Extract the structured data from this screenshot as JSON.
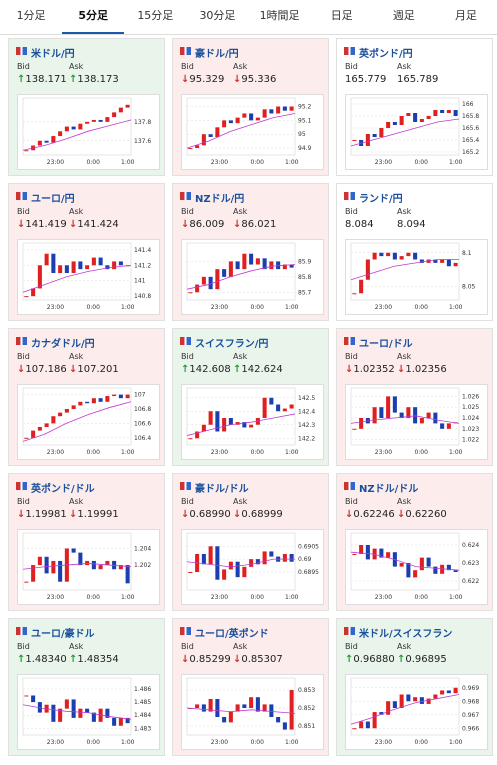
{
  "tabs": [
    "1分足",
    "5分足",
    "15分足",
    "30分足",
    "1時間足",
    "日足",
    "週足",
    "月足"
  ],
  "active_tab": 1,
  "time_labels": [
    "23:00",
    "0:00",
    "1:00"
  ],
  "bid_label": "Bid",
  "ask_label": "Ask",
  "cards": [
    {
      "pair": "米ドル/円",
      "trend": "up",
      "arrow": "↑",
      "bid": "138.171",
      "ask": "138.173",
      "ylim": [
        137.45,
        138.02
      ],
      "yticks": [
        137.8,
        137.6
      ],
      "closes": [
        137.5,
        137.55,
        137.6,
        137.58,
        137.65,
        137.7,
        137.75,
        137.72,
        137.78,
        137.8,
        137.82,
        137.8,
        137.85,
        137.9,
        137.95,
        137.98
      ],
      "ma": [
        137.5,
        137.55,
        137.62,
        137.7,
        137.76,
        137.82
      ]
    },
    {
      "pair": "豪ドル/円",
      "trend": "down",
      "arrow": "↓",
      "bid": "95.329",
      "ask": "95.336",
      "ylim": [
        94.85,
        95.24
      ],
      "yticks": [
        95.2,
        95.1,
        95,
        94.9
      ],
      "closes": [
        94.9,
        94.92,
        95.0,
        94.98,
        95.05,
        95.1,
        95.08,
        95.12,
        95.15,
        95.1,
        95.12,
        95.18,
        95.15,
        95.2,
        95.17,
        95.2
      ],
      "ma": [
        94.9,
        94.95,
        95.02,
        95.07,
        95.12,
        95.15
      ]
    },
    {
      "pair": "英ポンド/円",
      "trend": "flat",
      "arrow": null,
      "bid": "165.779",
      "ask": "165.789",
      "ylim": [
        165.15,
        166.05
      ],
      "yticks": [
        166,
        165.8,
        165.6,
        165.4,
        165.2
      ],
      "closes": [
        165.4,
        165.3,
        165.5,
        165.45,
        165.6,
        165.7,
        165.65,
        165.8,
        165.85,
        165.7,
        165.75,
        165.8,
        165.9,
        165.85,
        165.9,
        165.8
      ],
      "ma": [
        165.3,
        165.4,
        165.5,
        165.6,
        165.7,
        165.75
      ]
    },
    {
      "pair": "ユーロ/円",
      "trend": "down",
      "arrow": "↓",
      "bid": "141.419",
      "ask": "141.424",
      "ylim": [
        140.75,
        141.45
      ],
      "yticks": [
        141.4,
        141.2,
        141,
        140.8
      ],
      "closes": [
        140.8,
        140.9,
        141.2,
        141.35,
        141.1,
        141.2,
        141.1,
        141.25,
        141.15,
        141.2,
        141.3,
        141.2,
        141.15,
        141.25,
        141.2,
        141.2
      ],
      "ma": [
        140.85,
        140.95,
        141.05,
        141.12,
        141.17,
        141.2
      ]
    },
    {
      "pair": "NZドル/円",
      "trend": "down",
      "arrow": "↓",
      "bid": "86.009",
      "ask": "86.021",
      "ylim": [
        85.65,
        86.0
      ],
      "yticks": [
        85.9,
        85.8,
        85.7
      ],
      "closes": [
        85.7,
        85.75,
        85.8,
        85.72,
        85.85,
        85.8,
        85.9,
        85.85,
        85.95,
        85.88,
        85.92,
        85.85,
        85.9,
        85.85,
        85.88,
        85.86
      ],
      "ma": [
        85.72,
        85.75,
        85.8,
        85.84,
        85.87,
        85.88
      ]
    },
    {
      "pair": "ランド/円",
      "trend": "flat",
      "arrow": null,
      "bid": "8.084",
      "ask": "8.094",
      "ylim": [
        8.03,
        8.11
      ],
      "yticks": [
        8.1,
        8.05
      ],
      "closes": [
        8.04,
        8.06,
        8.09,
        8.1,
        8.095,
        8.1,
        8.09,
        8.095,
        8.1,
        8.09,
        8.085,
        8.09,
        8.085,
        8.09,
        8.08,
        8.085
      ],
      "ma": [
        8.06,
        8.07,
        8.08,
        8.085,
        8.09,
        8.09
      ]
    },
    {
      "pair": "カナダドル/円",
      "trend": "down",
      "arrow": "↓",
      "bid": "107.186",
      "ask": "107.201",
      "ylim": [
        106.3,
        107.05
      ],
      "yticks": [
        107,
        106.8,
        106.6,
        106.4
      ],
      "closes": [
        106.4,
        106.5,
        106.55,
        106.6,
        106.7,
        106.75,
        106.8,
        106.85,
        106.9,
        106.88,
        106.95,
        106.9,
        106.98,
        107,
        106.95,
        107
      ],
      "ma": [
        106.35,
        106.45,
        106.6,
        106.72,
        106.82,
        106.9
      ]
    },
    {
      "pair": "スイスフラン/円",
      "trend": "up",
      "arrow": "↑",
      "bid": "142.608",
      "ask": "142.624",
      "ylim": [
        142.15,
        142.55
      ],
      "yticks": [
        142.5,
        142.4,
        142.3,
        142.2
      ],
      "closes": [
        142.2,
        142.25,
        142.3,
        142.4,
        142.25,
        142.35,
        142.3,
        142.32,
        142.28,
        142.3,
        142.35,
        142.5,
        142.45,
        142.4,
        142.42,
        142.45
      ],
      "ma": [
        142.22,
        142.26,
        142.3,
        142.32,
        142.35,
        142.38
      ]
    },
    {
      "pair": "ユーロ/ドル",
      "trend": "down",
      "arrow": "↓",
      "bid": "1.02352",
      "ask": "1.02356",
      "ylim": [
        1.0215,
        1.0265
      ],
      "yticks": [
        1.026,
        1.025,
        1.024,
        1.023,
        1.022
      ],
      "closes": [
        1.023,
        1.024,
        1.0235,
        1.025,
        1.024,
        1.026,
        1.0245,
        1.024,
        1.025,
        1.0235,
        1.024,
        1.0245,
        1.0235,
        1.023,
        1.0235,
        1.0236
      ],
      "ma": [
        1.0235,
        1.0238,
        1.024,
        1.0242,
        1.0238,
        1.0235
      ]
    },
    {
      "pair": "英ポンド/ドル",
      "trend": "down",
      "arrow": "↓",
      "bid": "1.19981",
      "ask": "1.19991",
      "ylim": [
        1.199,
        1.2055
      ],
      "yticks": [
        1.204,
        1.202
      ],
      "closes": [
        1.2,
        1.202,
        1.203,
        1.201,
        1.2025,
        1.2,
        1.204,
        1.2035,
        1.202,
        1.2025,
        1.2015,
        1.202,
        1.2025,
        1.2015,
        1.202,
        1.1998
      ],
      "ma": [
        1.2015,
        1.2018,
        1.202,
        1.2022,
        1.202,
        1.2018
      ]
    },
    {
      "pair": "豪ドル/ドル",
      "trend": "down",
      "arrow": "↓",
      "bid": "0.68990",
      "ask": "0.68999",
      "ylim": [
        0.6888,
        0.6909
      ],
      "yticks": [
        0.6905,
        0.69,
        0.6895
      ],
      "closes": [
        0.6895,
        0.6902,
        0.6898,
        0.6905,
        0.6892,
        0.6896,
        0.6899,
        0.6893,
        0.6897,
        0.69,
        0.6898,
        0.6903,
        0.6901,
        0.6899,
        0.6902,
        0.6899
      ],
      "ma": [
        0.6899,
        0.6898,
        0.6897,
        0.6898,
        0.69,
        0.69
      ]
    },
    {
      "pair": "NZドル/ドル",
      "trend": "down",
      "arrow": "↓",
      "bid": "0.62246",
      "ask": "0.62260",
      "ylim": [
        0.6215,
        0.6245
      ],
      "yticks": [
        0.624,
        0.623,
        0.622
      ],
      "closes": [
        0.6235,
        0.624,
        0.6232,
        0.6238,
        0.6233,
        0.6236,
        0.6228,
        0.623,
        0.6222,
        0.6226,
        0.6233,
        0.6228,
        0.6224,
        0.6229,
        0.6226,
        0.6225
      ],
      "ma": [
        0.6236,
        0.6235,
        0.6232,
        0.6228,
        0.6227,
        0.6226
      ]
    },
    {
      "pair": "ユーロ/豪ドル",
      "trend": "up",
      "arrow": "↑",
      "bid": "1.48340",
      "ask": "1.48354",
      "ylim": [
        1.4825,
        1.4866
      ],
      "yticks": [
        1.486,
        1.485,
        1.484,
        1.483
      ],
      "closes": [
        1.4855,
        1.485,
        1.4842,
        1.4848,
        1.4835,
        1.4845,
        1.4852,
        1.4838,
        1.4845,
        1.4842,
        1.4835,
        1.4845,
        1.4838,
        1.4832,
        1.4838,
        1.4834
      ],
      "ma": [
        1.4848,
        1.4845,
        1.4843,
        1.4842,
        1.4839,
        1.4837
      ]
    },
    {
      "pair": "ユーロ/英ポンド",
      "trend": "down",
      "arrow": "↓",
      "bid": "0.85299",
      "ask": "0.85307",
      "ylim": [
        0.8505,
        0.8535
      ],
      "yticks": [
        0.853,
        0.852,
        0.851
      ],
      "closes": [
        0.852,
        0.8522,
        0.8518,
        0.8525,
        0.8515,
        0.8512,
        0.8518,
        0.8522,
        0.852,
        0.8526,
        0.8518,
        0.8522,
        0.8515,
        0.8512,
        0.8508,
        0.853
      ],
      "ma": [
        0.852,
        0.8519,
        0.8518,
        0.8519,
        0.8518,
        0.8517
      ]
    },
    {
      "pair": "米ドル/スイスフラン",
      "trend": "up",
      "arrow": "↑",
      "bid": "0.96880",
      "ask": "0.96895",
      "ylim": [
        0.9655,
        0.9695
      ],
      "yticks": [
        0.969,
        0.968,
        0.967,
        0.966
      ],
      "closes": [
        0.966,
        0.9665,
        0.966,
        0.9672,
        0.967,
        0.968,
        0.9675,
        0.9685,
        0.968,
        0.9683,
        0.9678,
        0.9682,
        0.9685,
        0.9688,
        0.9686,
        0.969
      ],
      "ma": [
        0.9663,
        0.9668,
        0.9674,
        0.9679,
        0.9682,
        0.9685
      ]
    }
  ]
}
